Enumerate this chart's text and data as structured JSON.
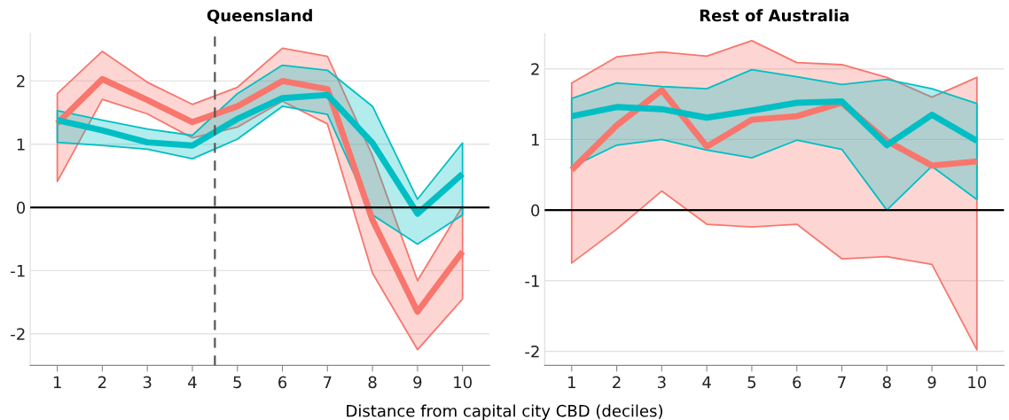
{
  "chart_data": [
    {
      "type": "line",
      "title": "Queensland",
      "xlabel": "Distance from capital city CBD (deciles)",
      "x": [
        1,
        2,
        3,
        4,
        5,
        6,
        7,
        8,
        9,
        10
      ],
      "series": [
        {
          "color": "#f8766d",
          "values": [
            1.33,
            2.03,
            1.7,
            1.35,
            1.6,
            2.0,
            1.87,
            -0.2,
            -1.65,
            -0.7
          ],
          "lower": [
            0.41,
            1.71,
            1.48,
            1.1,
            1.27,
            1.68,
            1.32,
            -1.04,
            -2.25,
            -1.45
          ],
          "upper": [
            1.8,
            2.47,
            1.98,
            1.63,
            1.9,
            2.52,
            2.39,
            0.82,
            -1.16,
            0.02
          ]
        },
        {
          "color": "#00bfc4",
          "values": [
            1.38,
            1.22,
            1.03,
            0.98,
            1.4,
            1.73,
            1.78,
            1.02,
            -0.1,
            0.53
          ],
          "lower": [
            1.03,
            0.98,
            0.92,
            0.77,
            1.08,
            1.6,
            1.47,
            -0.12,
            -0.58,
            -0.12
          ],
          "upper": [
            1.53,
            1.38,
            1.24,
            1.14,
            1.8,
            2.25,
            2.17,
            1.6,
            0.13,
            1.02
          ]
        }
      ],
      "xlim": [
        0.4,
        10.6
      ],
      "ylim": [
        -2.5,
        2.75
      ],
      "xticks": [
        1,
        2,
        3,
        4,
        5,
        6,
        7,
        8,
        9,
        10
      ],
      "yticks": [
        -2,
        -1,
        0,
        1,
        2
      ],
      "grid": "y",
      "marker": "none",
      "line_style": "solid",
      "ref_lines": [
        {
          "axis": "y",
          "value": 0,
          "color": "#000000",
          "line_style": "solid"
        },
        {
          "axis": "x",
          "value": 4.5,
          "color": "#555555",
          "line_style": "dashed"
        }
      ]
    },
    {
      "type": "line",
      "title": "Rest of Australia",
      "x": [
        1,
        2,
        3,
        4,
        5,
        6,
        7,
        8,
        9,
        10
      ],
      "series": [
        {
          "color": "#f8766d",
          "values": [
            0.57,
            1.2,
            1.7,
            0.9,
            1.28,
            1.33,
            1.52,
            0.98,
            0.63,
            0.69
          ],
          "lower": [
            -0.75,
            -0.27,
            0.27,
            -0.2,
            -0.24,
            -0.2,
            -0.69,
            -0.66,
            -0.77,
            -1.98
          ],
          "upper": [
            1.8,
            2.17,
            2.24,
            2.18,
            2.4,
            2.09,
            2.06,
            1.88,
            1.6,
            1.88
          ]
        },
        {
          "color": "#00bfc4",
          "values": [
            1.33,
            1.46,
            1.43,
            1.31,
            1.41,
            1.52,
            1.54,
            0.92,
            1.35,
            0.98
          ],
          "lower": [
            0.61,
            0.92,
            1.0,
            0.85,
            0.74,
            0.99,
            0.86,
            0.0,
            0.62,
            0.15
          ],
          "upper": [
            1.58,
            1.8,
            1.75,
            1.72,
            1.99,
            1.89,
            1.78,
            1.85,
            1.72,
            1.51
          ]
        }
      ],
      "xlim": [
        0.4,
        10.6
      ],
      "ylim": [
        -2.2,
        2.5
      ],
      "xticks": [
        1,
        2,
        3,
        4,
        5,
        6,
        7,
        8,
        9,
        10
      ],
      "yticks": [
        -2,
        -1,
        0,
        1,
        2
      ],
      "grid": "y",
      "marker": "none",
      "line_style": "solid",
      "ref_lines": [
        {
          "axis": "y",
          "value": 0,
          "color": "#000000",
          "line_style": "solid"
        }
      ]
    }
  ]
}
